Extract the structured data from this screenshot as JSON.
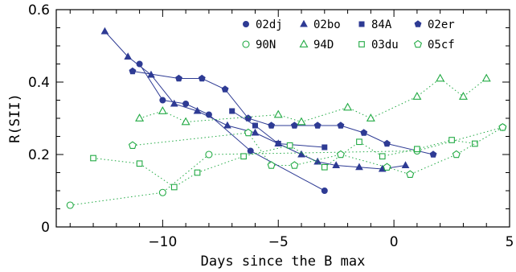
{
  "chart_data": {
    "type": "scatter",
    "xlabel": "Days since the B max",
    "ylabel": "R(SII)",
    "xlim": [
      -14.6,
      5
    ],
    "ylim": [
      0,
      0.6
    ],
    "x_ticks": [
      -10,
      -5,
      0,
      5
    ],
    "y_ticks": [
      0,
      0.2,
      0.4,
      0.6
    ],
    "x_tick_labels": [
      "−10",
      "−5",
      "0",
      "5"
    ],
    "y_tick_labels": [
      "0",
      "0.2",
      "0.4",
      "0.6"
    ],
    "legend_placement": "top-right",
    "colors": {
      "blue": "#2e3b94",
      "green": "#22aa44"
    },
    "series": [
      {
        "name": "02dj",
        "marker": "circle-filled",
        "color": "#2e3b94",
        "line": "solid",
        "x": [
          -11.0,
          -10.0,
          -9.0,
          -8.0,
          -6.2,
          -3.0
        ],
        "y": [
          0.45,
          0.35,
          0.34,
          0.31,
          0.21,
          0.1
        ]
      },
      {
        "name": "02bo",
        "marker": "triangle-filled",
        "color": "#2e3b94",
        "line": "solid",
        "x": [
          -12.5,
          -11.5,
          -10.5,
          -9.5,
          -8.5,
          -7.2,
          -6.0,
          -5.0,
          -4.0,
          -3.3,
          -2.5,
          -1.5,
          -0.5,
          0.5
        ],
        "y": [
          0.54,
          0.47,
          0.42,
          0.34,
          0.32,
          0.28,
          0.26,
          0.23,
          0.2,
          0.18,
          0.17,
          0.165,
          0.16,
          0.17
        ]
      },
      {
        "name": "84A",
        "marker": "square-filled",
        "color": "#2e3b94",
        "line": "solid",
        "x": [
          -7.0,
          -6.0,
          -5.0,
          -3.0
        ],
        "y": [
          0.32,
          0.28,
          0.23,
          0.22
        ]
      },
      {
        "name": "02er",
        "marker": "pentagon-filled",
        "color": "#2e3b94",
        "line": "solid",
        "x": [
          -11.3,
          -9.3,
          -8.3,
          -7.3,
          -6.3,
          -5.3,
          -4.3,
          -3.3,
          -2.3,
          -1.3,
          -0.3,
          1.7
        ],
        "y": [
          0.43,
          0.41,
          0.41,
          0.38,
          0.3,
          0.28,
          0.28,
          0.28,
          0.28,
          0.26,
          0.23,
          0.2
        ]
      },
      {
        "name": "90N",
        "marker": "circle-open",
        "color": "#22aa44",
        "line": "dotted",
        "x": [
          -14.0,
          -10.0,
          -8.0,
          1.0,
          4.7
        ],
        "y": [
          0.06,
          0.095,
          0.2,
          0.21,
          0.275
        ]
      },
      {
        "name": "94D",
        "marker": "triangle-open",
        "color": "#22aa44",
        "line": "dotted",
        "x": [
          -11.0,
          -10.0,
          -9.0,
          -5.0,
          -4.0,
          -2.0,
          -1.0,
          1.0,
          2.0,
          3.0,
          4.0
        ],
        "y": [
          0.3,
          0.32,
          0.29,
          0.31,
          0.29,
          0.33,
          0.3,
          0.36,
          0.41,
          0.36,
          0.41
        ]
      },
      {
        "name": "03du",
        "marker": "square-open",
        "color": "#22aa44",
        "line": "dotted",
        "x": [
          -13.0,
          -11.0,
          -9.5,
          -8.5,
          -6.5,
          -4.5,
          -3.0,
          -1.5,
          -0.5,
          1.0,
          2.5,
          3.5
        ],
        "y": [
          0.19,
          0.175,
          0.11,
          0.15,
          0.195,
          0.225,
          0.165,
          0.235,
          0.195,
          0.215,
          0.24,
          0.23
        ]
      },
      {
        "name": "05cf",
        "marker": "pentagon-open",
        "color": "#22aa44",
        "line": "dotted",
        "x": [
          -11.3,
          -6.3,
          -5.3,
          -4.3,
          -2.3,
          -0.3,
          0.7,
          2.7,
          4.7
        ],
        "y": [
          0.225,
          0.26,
          0.17,
          0.17,
          0.2,
          0.165,
          0.145,
          0.2,
          0.275
        ]
      }
    ]
  }
}
